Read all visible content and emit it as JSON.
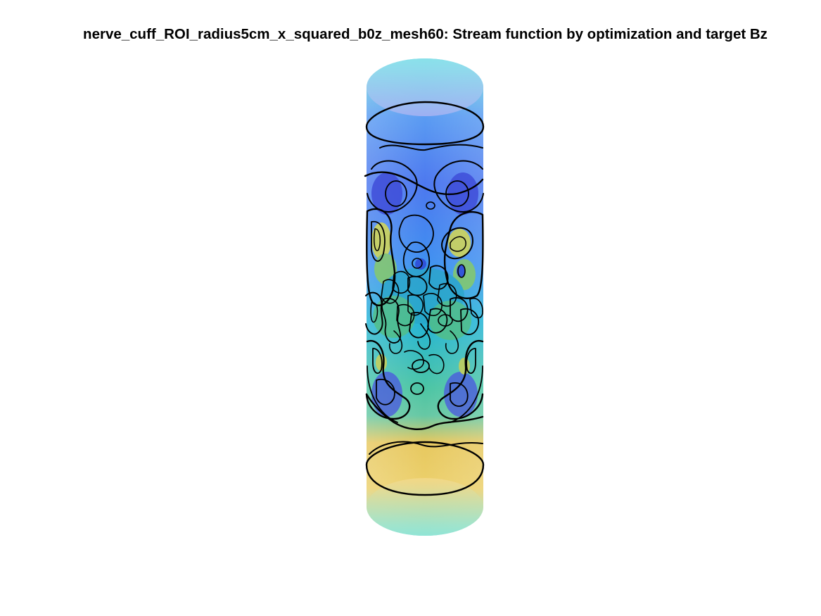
{
  "figure": {
    "title": "nerve_cuff_ROI_radius5cm_x_squared_b0z_mesh60: Stream function by optimization and target Bz"
  },
  "colors": {
    "background": "#ffffff",
    "contour": "#000000",
    "colormap": "parula",
    "shell_gradient_stops": [
      "#6ad7e0",
      "#5a9cf2",
      "#4d78ef",
      "#3f8ff0",
      "#22b3d6",
      "#4cc5a4",
      "#66c8a4",
      "#e7c85f",
      "#ecd06c",
      "#8fe0d3"
    ]
  }
}
